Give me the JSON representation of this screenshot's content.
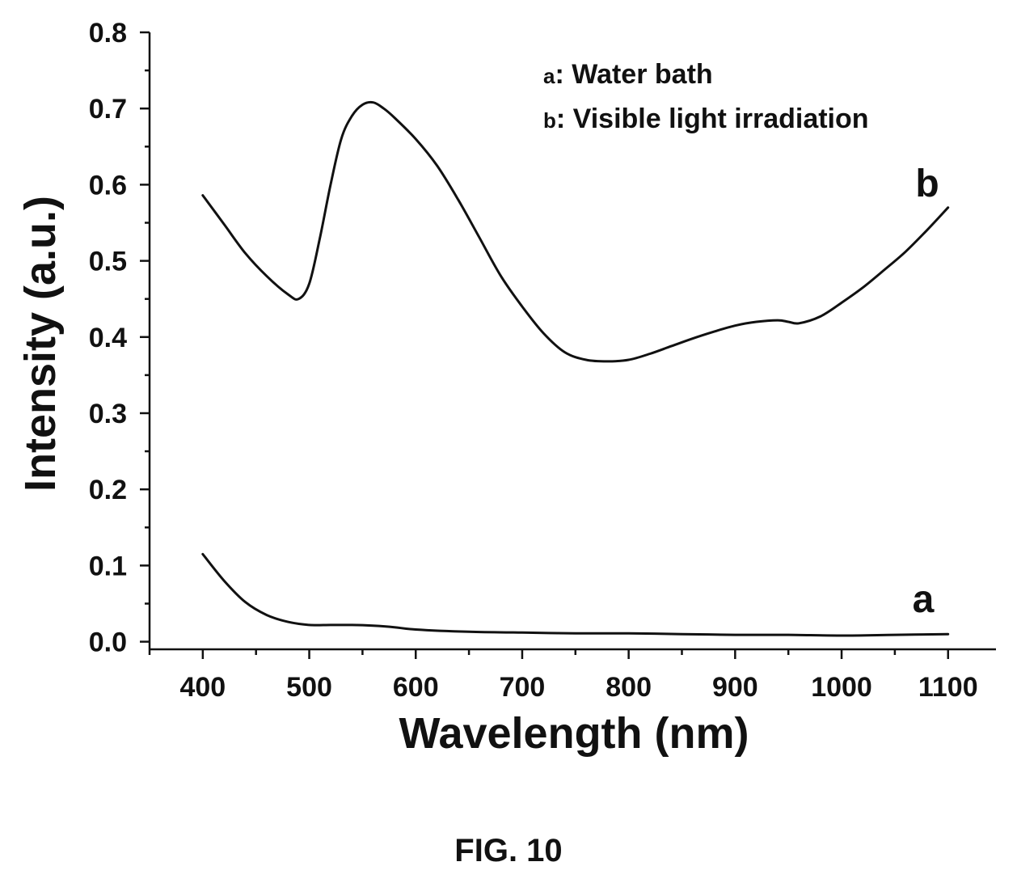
{
  "figure_label": "FIG. 10",
  "chart_data": {
    "type": "line",
    "xlabel": "Wavelength (nm)",
    "ylabel": "Intensity (a.u.)",
    "xlim": [
      350,
      1145
    ],
    "ylim": [
      -0.01,
      0.8
    ],
    "xticks": [
      400,
      500,
      600,
      700,
      800,
      900,
      1000,
      1100
    ],
    "xtick_labels": [
      "400",
      "500",
      "600",
      "700",
      "800",
      "900",
      "1000",
      "1100"
    ],
    "yticks": [
      0.0,
      0.1,
      0.2,
      0.3,
      0.4,
      0.5,
      0.6,
      0.7,
      0.8
    ],
    "ytick_labels": [
      "0.0",
      "0.1",
      "0.2",
      "0.3",
      "0.4",
      "0.5",
      "0.6",
      "0.7",
      "0.8"
    ],
    "grid": false,
    "legend_position": "top-right",
    "legend": [
      {
        "key": "a",
        "text": ": Water bath"
      },
      {
        "key": "b",
        "text": ": Visible light irradiation"
      }
    ],
    "series": [
      {
        "name": "a",
        "curve_label": "a",
        "x": [
          400,
          420,
          440,
          460,
          480,
          500,
          520,
          540,
          560,
          580,
          600,
          650,
          700,
          750,
          800,
          850,
          900,
          950,
          1000,
          1050,
          1100
        ],
        "y": [
          0.115,
          0.08,
          0.052,
          0.035,
          0.026,
          0.022,
          0.022,
          0.022,
          0.021,
          0.019,
          0.016,
          0.013,
          0.012,
          0.011,
          0.011,
          0.01,
          0.009,
          0.009,
          0.008,
          0.009,
          0.01
        ]
      },
      {
        "name": "b",
        "curve_label": "b",
        "x": [
          400,
          420,
          440,
          460,
          480,
          490,
          500,
          510,
          520,
          530,
          540,
          550,
          560,
          570,
          580,
          600,
          620,
          640,
          660,
          680,
          700,
          720,
          740,
          760,
          780,
          800,
          820,
          840,
          860,
          880,
          900,
          920,
          940,
          950,
          960,
          980,
          1000,
          1020,
          1040,
          1060,
          1080,
          1100
        ],
        "y": [
          0.586,
          0.548,
          0.51,
          0.48,
          0.456,
          0.45,
          0.47,
          0.53,
          0.6,
          0.66,
          0.69,
          0.705,
          0.708,
          0.7,
          0.688,
          0.66,
          0.625,
          0.58,
          0.53,
          0.48,
          0.44,
          0.405,
          0.38,
          0.37,
          0.368,
          0.37,
          0.378,
          0.388,
          0.398,
          0.407,
          0.415,
          0.42,
          0.422,
          0.42,
          0.418,
          0.427,
          0.445,
          0.465,
          0.488,
          0.512,
          0.54,
          0.57
        ]
      }
    ]
  }
}
